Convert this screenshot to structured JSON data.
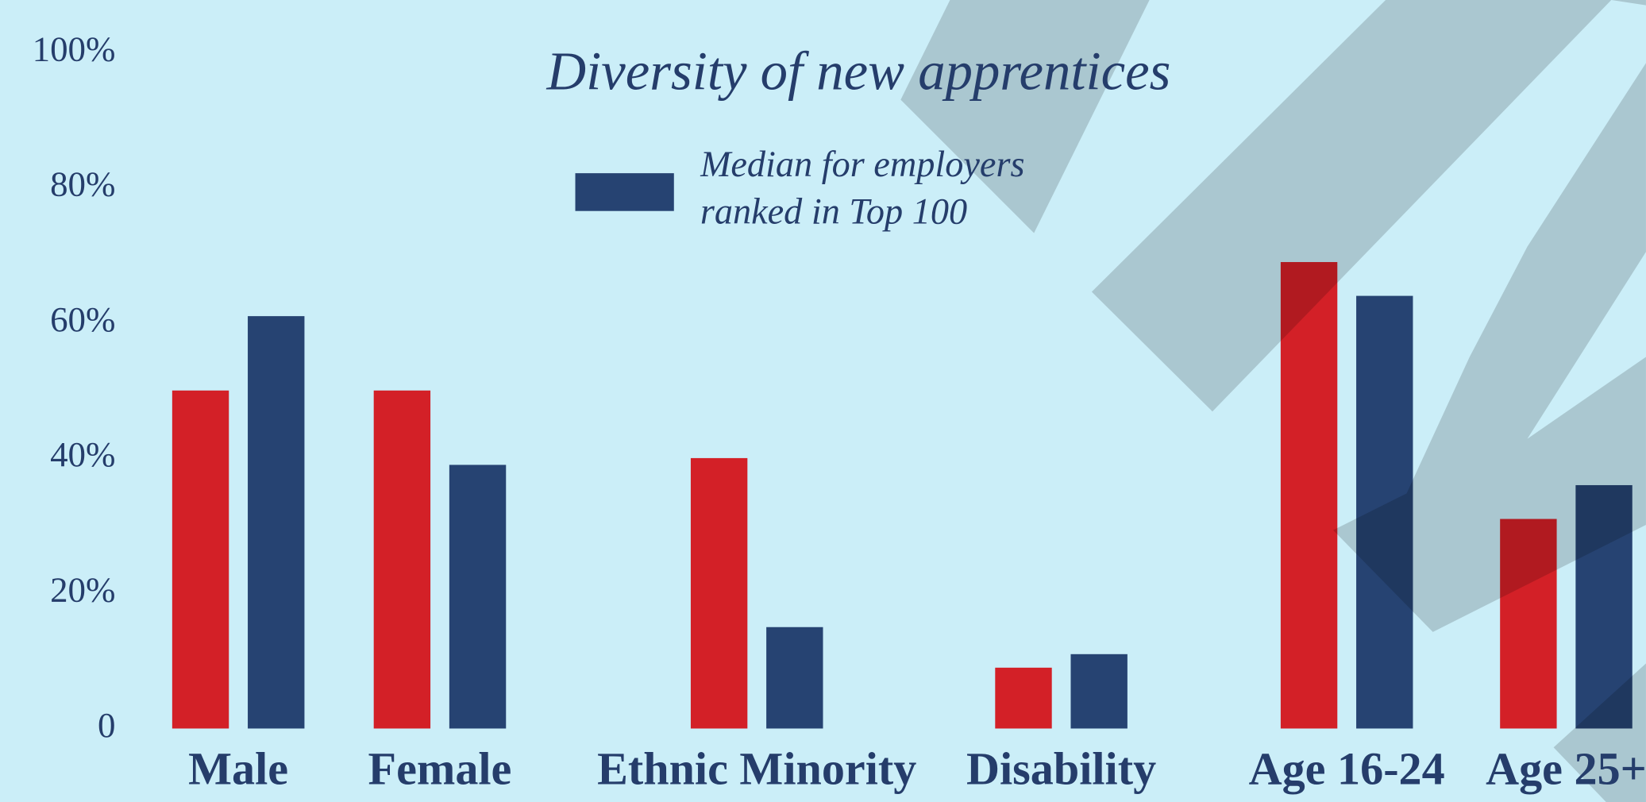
{
  "chart_data": {
    "type": "bar",
    "title": "Diversity of new apprentices",
    "categories": [
      "Male",
      "Female",
      "Ethnic Minority",
      "Disability",
      "Age 16-24",
      "Age 25+"
    ],
    "series": [
      {
        "color": "#d32027",
        "values": [
          50,
          50,
          40,
          9,
          69,
          31
        ]
      },
      {
        "name": "Median for employers ranked in Top 100",
        "color": "#264372",
        "values": [
          61,
          39,
          15,
          11,
          64,
          36
        ]
      }
    ],
    "ylim": [
      0,
      100
    ],
    "yticks": [
      0,
      {
        "value": 20,
        "label": "20%"
      },
      {
        "value": 40,
        "label": "40%"
      },
      {
        "value": 60,
        "label": "60%"
      },
      {
        "value": 80,
        "label": "80%"
      },
      {
        "value": 100,
        "label": "100%"
      }
    ],
    "grid": false
  }
}
